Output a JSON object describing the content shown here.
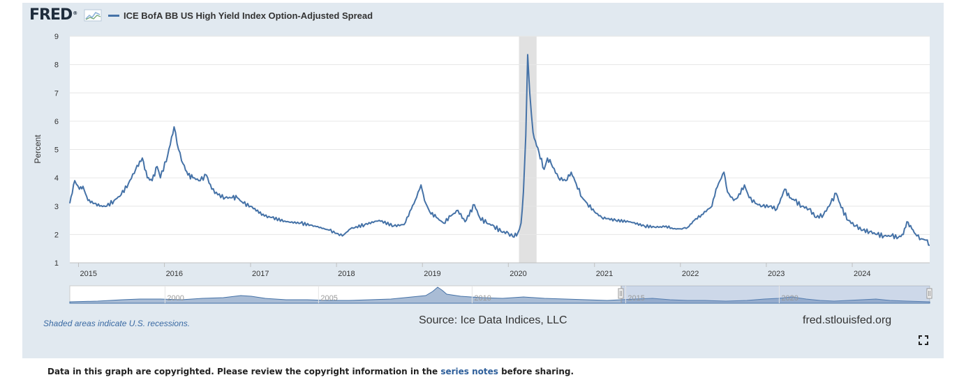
{
  "header": {
    "logo_text": "FRED",
    "logo_mark": "®",
    "legend_label": "ICE BofA BB US High Yield Index Option-Adjusted Spread"
  },
  "footer": {
    "recession_note": "Shaded areas indicate U.S. recessions.",
    "source": "Source: Ice Data Indices, LLC",
    "site": "fred.stlouisfed.org",
    "copyright_prefix": "Data in this graph are copyrighted. Please review the copyright information in the ",
    "copyright_link": "series notes",
    "copyright_suffix": " before sharing."
  },
  "icons": {
    "fullscreen": "fullscreen-icon",
    "logo_graph": "chart-line-icon"
  },
  "colors": {
    "series": "#4572a7",
    "panel": "#e1e9f0",
    "recession": "#e1e1e1",
    "navigator_fill": "#8ca6c7"
  },
  "chart_data": {
    "type": "line",
    "title": "",
    "ylabel": "Percent",
    "xlabel": "",
    "ylim": [
      1,
      9
    ],
    "y_ticks": [
      "1",
      "2",
      "3",
      "4",
      "5",
      "6",
      "7",
      "8",
      "9"
    ],
    "x_ticks": [
      "2015",
      "2016",
      "2017",
      "2018",
      "2019",
      "2020",
      "2021",
      "2022",
      "2023",
      "2024"
    ],
    "x_range": [
      "2014-11-25",
      "2024-11-25"
    ],
    "grid": true,
    "recessions": [
      [
        "2020-02-15",
        "2020-04-30"
      ]
    ],
    "series": [
      {
        "name": "ICE BofA BB US High Yield Index Option-Adjusted Spread",
        "x": [
          "2014-11-25",
          "2014-12-16",
          "2015-01-05",
          "2015-01-20",
          "2015-02-10",
          "2015-03-10",
          "2015-04-01",
          "2015-05-01",
          "2015-06-01",
          "2015-07-01",
          "2015-08-01",
          "2015-09-01",
          "2015-09-29",
          "2015-10-20",
          "2015-11-10",
          "2015-12-01",
          "2015-12-15",
          "2016-01-15",
          "2016-02-11",
          "2016-03-01",
          "2016-03-20",
          "2016-04-10",
          "2016-05-01",
          "2016-06-01",
          "2016-06-27",
          "2016-07-20",
          "2016-08-15",
          "2016-09-15",
          "2016-10-15",
          "2016-11-05",
          "2016-12-01",
          "2017-01-01",
          "2017-03-01",
          "2017-04-01",
          "2017-06-01",
          "2017-08-01",
          "2017-10-01",
          "2017-12-01",
          "2018-01-26",
          "2018-03-01",
          "2018-05-01",
          "2018-07-01",
          "2018-09-01",
          "2018-10-15",
          "2018-11-15",
          "2018-12-01",
          "2018-12-26",
          "2019-01-10",
          "2019-02-01",
          "2019-03-01",
          "2019-04-01",
          "2019-05-01",
          "2019-06-01",
          "2019-07-01",
          "2019-08-10",
          "2019-09-01",
          "2019-10-01",
          "2019-11-01",
          "2019-12-01",
          "2020-01-01",
          "2020-01-20",
          "2020-02-10",
          "2020-02-24",
          "2020-03-05",
          "2020-03-15",
          "2020-03-23",
          "2020-04-01",
          "2020-04-15",
          "2020-04-25",
          "2020-05-10",
          "2020-06-01",
          "2020-06-15",
          "2020-07-01",
          "2020-08-01",
          "2020-09-01",
          "2020-09-24",
          "2020-10-15",
          "2020-11-10",
          "2020-12-01",
          "2021-01-01",
          "2021-02-01",
          "2021-04-01",
          "2021-06-01",
          "2021-08-01",
          "2021-10-01",
          "2021-11-01",
          "2021-12-01",
          "2022-01-01",
          "2022-02-01",
          "2022-03-01",
          "2022-04-01",
          "2022-05-15",
          "2022-06-01",
          "2022-07-05",
          "2022-07-20",
          "2022-08-15",
          "2022-09-01",
          "2022-09-30",
          "2022-10-20",
          "2022-11-15",
          "2022-12-15",
          "2023-01-15",
          "2023-02-15",
          "2023-03-20",
          "2023-04-10",
          "2023-05-01",
          "2023-06-01",
          "2023-07-01",
          "2023-08-01",
          "2023-09-01",
          "2023-10-01",
          "2023-10-25",
          "2023-11-15",
          "2023-12-15",
          "2024-01-15",
          "2024-02-15",
          "2024-03-15",
          "2024-04-15",
          "2024-05-15",
          "2024-06-15",
          "2024-07-15",
          "2024-08-05",
          "2024-08-20",
          "2024-09-10",
          "2024-10-01",
          "2024-10-20",
          "2024-11-10",
          "2024-11-25"
        ],
        "values": [
          3.1,
          3.9,
          3.6,
          3.7,
          3.2,
          3.1,
          3.0,
          3.0,
          3.2,
          3.4,
          3.8,
          4.3,
          4.7,
          4.0,
          3.9,
          4.4,
          4.0,
          4.8,
          5.8,
          5.0,
          4.5,
          4.1,
          4.0,
          3.9,
          4.1,
          3.6,
          3.4,
          3.3,
          3.3,
          3.3,
          3.1,
          3.0,
          2.65,
          2.6,
          2.45,
          2.4,
          2.3,
          2.15,
          1.95,
          2.2,
          2.35,
          2.5,
          2.3,
          2.35,
          2.9,
          3.2,
          3.75,
          3.2,
          2.8,
          2.6,
          2.4,
          2.65,
          2.85,
          2.45,
          3.05,
          2.6,
          2.4,
          2.3,
          2.1,
          2.05,
          1.92,
          2.05,
          2.4,
          3.5,
          5.5,
          8.35,
          7.0,
          5.6,
          5.3,
          4.9,
          4.3,
          4.7,
          4.5,
          4.0,
          3.9,
          4.2,
          3.8,
          3.3,
          3.1,
          2.8,
          2.6,
          2.5,
          2.45,
          2.3,
          2.25,
          2.3,
          2.2,
          2.2,
          2.25,
          2.5,
          2.7,
          3.0,
          3.6,
          4.2,
          3.5,
          3.2,
          3.3,
          3.75,
          3.3,
          3.1,
          3.0,
          3.0,
          2.9,
          3.6,
          3.3,
          3.2,
          3.0,
          2.9,
          2.6,
          2.7,
          3.1,
          3.45,
          2.95,
          2.5,
          2.3,
          2.15,
          2.1,
          2.0,
          1.95,
          1.95,
          1.9,
          2.0,
          2.45,
          2.2,
          1.95,
          1.85,
          1.8,
          1.62
        ]
      }
    ],
    "navigator": {
      "x_ticks": [
        "2000",
        "2005",
        "2010",
        "2015",
        "2020"
      ]
    }
  }
}
